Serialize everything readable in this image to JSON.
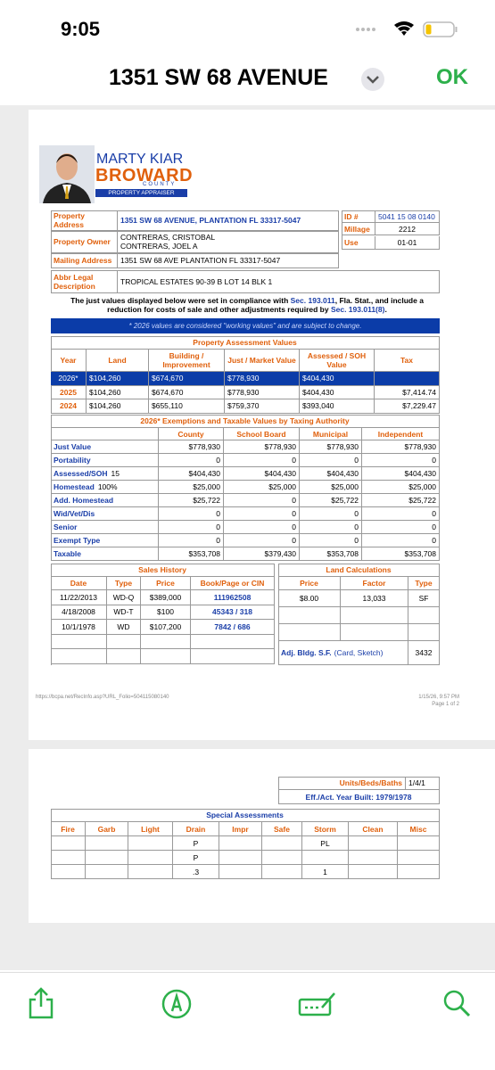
{
  "status_bar": {
    "time": "9:05"
  },
  "toolbar": {
    "title": "1351 SW 68 AVENUE",
    "action": "OK"
  },
  "page1": {
    "logo": {
      "name": "MARTY KIAR",
      "county": "BROWARD",
      "county_sub": "COUNTY",
      "office": "PROPERTY APPRAISER"
    },
    "parcel": {
      "rows": [
        [
          "Property Address",
          "1351 SW 68 AVENUE, PLANTATION FL 33317-5047"
        ],
        [
          "Property Owner",
          "CONTRERAS, CRISTOBAL\nCONTRERAS, JOEL A"
        ],
        [
          "Mailing Address",
          "1351 SW 68 AVE PLANTATION FL 33317-5047"
        ],
        [
          "Abbr Legal Description",
          "TROPICAL ESTATES 90-39 B LOT 14 BLK 1"
        ]
      ],
      "ids": [
        [
          "ID #",
          "5041 15 08 0140"
        ],
        [
          "Millage",
          "2212"
        ],
        [
          "Use",
          "01-01"
        ]
      ]
    },
    "notice": [
      "The just values displayed below were set in compliance with ",
      "Sec. 193.011",
      ", Fla. Stat., and include a reduction for costs of sale and other adjustments required by ",
      "Sec. 193.011(8)",
      "."
    ],
    "banner": "* 2026 values are considered \"working values\" and are subject to change.",
    "assessment": {
      "title": "Property Assessment Values",
      "headers": [
        "Year",
        "Land",
        "Building / Improvement",
        "Just / Market Value",
        "Assessed / SOH Value",
        "Tax"
      ],
      "rows": [
        [
          "2026*",
          "$104,260",
          "$674,670",
          "$778,930",
          "$404,430",
          null
        ],
        [
          "2025",
          "$104,260",
          "$674,670",
          "$778,930",
          "$404,430",
          "$7,414.74"
        ],
        [
          "2024",
          "$104,260",
          "$655,110",
          "$759,370",
          "$393,040",
          "$7,229.47"
        ]
      ]
    },
    "exemptions": {
      "title": "2026* Exemptions and Taxable Values by Taxing Authority",
      "headers": [
        "County",
        "School Board",
        "Municipal",
        "Independent"
      ],
      "rows": [
        [
          "Just Value",
          null,
          "$778,930",
          "$778,930",
          "$778,930",
          "$778,930"
        ],
        [
          "Portability",
          null,
          "0",
          "0",
          "0",
          "0"
        ],
        [
          "Assessed/SOH",
          "15",
          "$404,430",
          "$404,430",
          "$404,430",
          "$404,430"
        ],
        [
          "Homestead",
          "100%",
          "$25,000",
          "$25,000",
          "$25,000",
          "$25,000"
        ],
        [
          "Add. Homestead",
          null,
          "$25,722",
          "0",
          "$25,722",
          "$25,722"
        ],
        [
          "Wid/Vet/Dis",
          null,
          "0",
          "0",
          "0",
          "0"
        ],
        [
          "Senior",
          null,
          "0",
          "0",
          "0",
          "0"
        ],
        [
          "Exempt Type",
          null,
          "0",
          "0",
          "0",
          "0"
        ],
        [
          "Taxable",
          null,
          "$353,708",
          "$379,430",
          "$353,708",
          "$353,708"
        ]
      ]
    },
    "sales": {
      "title": "Sales History",
      "headers": [
        "Date",
        "Type",
        "Price",
        "Book/Page or CIN"
      ],
      "rows": [
        [
          "11/22/2013",
          "WD-Q",
          "$389,000",
          "111962508"
        ],
        [
          "4/18/2008",
          "WD-T",
          "$100",
          "45343 / 318"
        ],
        [
          "10/1/1978",
          "WD",
          "$107,200",
          "7842 / 686"
        ],
        [
          null,
          null,
          null,
          null
        ],
        [
          null,
          null,
          null,
          null
        ]
      ]
    },
    "land": {
      "title": "Land Calculations",
      "headers": [
        "Price",
        "Factor",
        "Type"
      ],
      "rows": [
        [
          "$8.00",
          "13,033",
          "SF"
        ],
        [
          null,
          null,
          null
        ],
        [
          null,
          null,
          null
        ]
      ],
      "adj_label": "Adj. Bldg. S.F.",
      "adj_links": "(Card, Sketch)",
      "adj_value": "3432"
    },
    "footer": {
      "url": "https://bcpa.net/RecInfo.asp?URL_Folio=504115080140",
      "date": "1/15/26, 9:57 PM",
      "page": "Page 1 of 2"
    }
  },
  "page2": {
    "units_label": "Units/Beds/Baths",
    "units_value": "1/4/1",
    "year_built": "Eff./Act. Year Built: 1979/1978",
    "special": {
      "title": "Special Assessments",
      "headers": [
        "Fire",
        "Garb",
        "Light",
        "Drain",
        "Impr",
        "Safe",
        "Storm",
        "Clean",
        "Misc"
      ],
      "rows": [
        [
          null,
          null,
          null,
          "P",
          null,
          null,
          "PL",
          null,
          null
        ],
        [
          null,
          null,
          null,
          "P",
          null,
          null,
          null,
          null,
          null
        ],
        [
          null,
          null,
          null,
          ".3",
          null,
          null,
          "1",
          null,
          null
        ]
      ]
    }
  }
}
